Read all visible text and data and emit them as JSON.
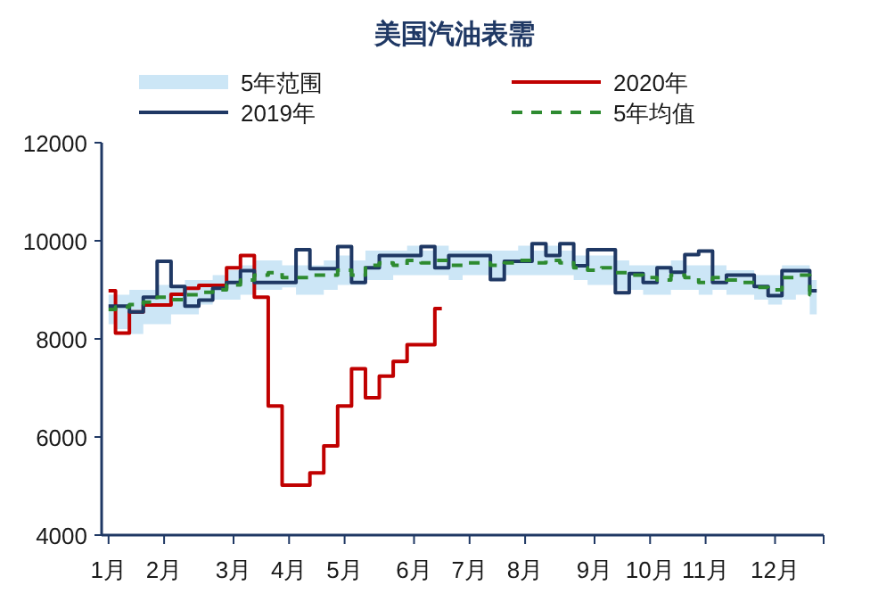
{
  "chart_data": {
    "type": "step",
    "title": "美国汽油表需",
    "legend": "top",
    "categories": [
      "1月",
      null,
      null,
      null,
      "2月",
      null,
      null,
      null,
      null,
      "3月",
      null,
      null,
      null,
      "4月",
      null,
      null,
      null,
      "5月",
      null,
      null,
      null,
      null,
      "6月",
      null,
      null,
      null,
      "7月",
      null,
      null,
      null,
      "8月",
      null,
      null,
      null,
      null,
      "9月",
      null,
      null,
      null,
      "10月",
      null,
      null,
      null,
      "11月",
      null,
      null,
      null,
      null,
      "12月",
      null,
      null,
      null
    ],
    "ylim": [
      4000,
      12000
    ],
    "yticks": [
      4000,
      6000,
      8000,
      10000,
      12000
    ],
    "series": [
      {
        "name": "2020年",
        "color": "#c00000",
        "values": [
          8980,
          8120,
          8550,
          8690,
          8690,
          8910,
          9030,
          9090,
          9090,
          9450,
          9700,
          8850,
          6630,
          5020,
          5020,
          5270,
          5820,
          6630,
          7390,
          6800,
          7240,
          7540,
          7880,
          7880,
          8620,
          null,
          null,
          null,
          null,
          null,
          null,
          null,
          null,
          null,
          null,
          null,
          null,
          null,
          null,
          null,
          null,
          null,
          null,
          null,
          null,
          null,
          null,
          null,
          null,
          null,
          null,
          null
        ]
      },
      {
        "name": "2019年",
        "color": "#1f3864",
        "values": [
          8670,
          8670,
          8550,
          8850,
          9580,
          9070,
          8670,
          8790,
          9030,
          9150,
          9390,
          9150,
          9150,
          9150,
          9820,
          9430,
          9430,
          9880,
          9150,
          9450,
          9700,
          9700,
          9700,
          9880,
          9450,
          9700,
          9700,
          9700,
          9210,
          9580,
          9580,
          9940,
          9700,
          9940,
          9490,
          9820,
          9820,
          8940,
          9330,
          9150,
          9450,
          9360,
          9720,
          9790,
          9150,
          9300,
          9300,
          9070,
          8880,
          9390,
          9390,
          8980
        ]
      },
      {
        "name": "5年均值",
        "color": "#2e8b30",
        "line_style": "dashed",
        "values": [
          8600,
          8650,
          8700,
          8750,
          8850,
          8800,
          8900,
          8950,
          9000,
          9100,
          9200,
          9300,
          9350,
          9250,
          9250,
          9300,
          9300,
          9400,
          9300,
          9500,
          9550,
          9500,
          9600,
          9550,
          9600,
          9500,
          9550,
          9550,
          9500,
          9550,
          9600,
          9550,
          9600,
          9550,
          9450,
          9400,
          9450,
          9350,
          9300,
          9250,
          9200,
          9300,
          9250,
          9150,
          9250,
          9200,
          9150,
          9050,
          9000,
          9250,
          9300,
          8900
        ],
        "lower": [
          8300,
          8200,
          8100,
          8300,
          8300,
          8500,
          8500,
          8700,
          8800,
          8800,
          8900,
          9000,
          9000,
          9050,
          8900,
          8900,
          9000,
          9100,
          9100,
          9200,
          9200,
          9300,
          9300,
          9300,
          9300,
          9200,
          9300,
          9300,
          9200,
          9300,
          9300,
          9300,
          9300,
          9300,
          9200,
          9100,
          9100,
          9000,
          9000,
          8900,
          8900,
          9000,
          9000,
          8900,
          9000,
          8900,
          8900,
          8800,
          8700,
          8800,
          8900,
          8500
        ],
        "upper": [
          8900,
          8900,
          9000,
          9000,
          9100,
          9100,
          9200,
          9200,
          9300,
          9400,
          9500,
          9600,
          9600,
          9500,
          9500,
          9500,
          9600,
          9700,
          9600,
          9800,
          9800,
          9800,
          9900,
          9800,
          9900,
          9800,
          9800,
          9800,
          9800,
          9800,
          9900,
          9800,
          9900,
          9800,
          9700,
          9700,
          9700,
          9600,
          9500,
          9500,
          9500,
          9600,
          9500,
          9500,
          9500,
          9400,
          9400,
          9300,
          9300,
          9500,
          9500,
          9200
        ]
      },
      {
        "name": "5年范围",
        "type": "area",
        "color": "#cce6f6",
        "values": [
          null,
          null,
          null,
          null,
          null,
          null,
          null,
          null,
          null,
          null,
          null,
          null,
          null,
          null,
          null,
          null,
          null,
          null,
          null,
          null,
          null,
          null,
          null,
          null,
          null,
          null,
          null,
          null,
          null,
          null,
          null,
          null,
          null,
          null,
          null,
          null,
          null,
          null,
          null,
          null,
          null,
          null,
          null,
          null,
          null,
          null,
          null,
          null,
          null,
          null,
          null,
          null
        ]
      }
    ]
  }
}
